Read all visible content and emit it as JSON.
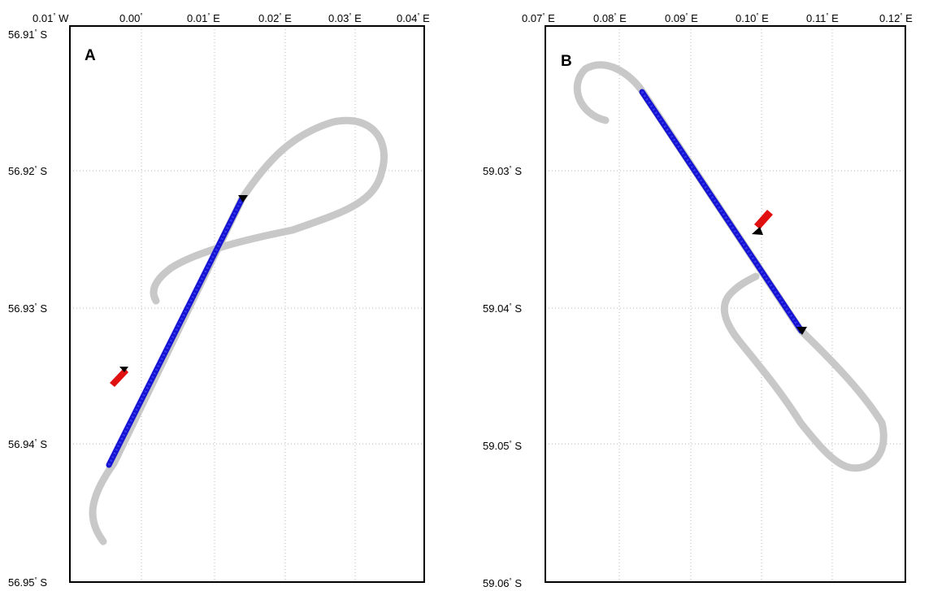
{
  "panels": [
    {
      "label": "A",
      "lon_ticks": [
        {
          "text": "0.01",
          "suffix": " W"
        },
        {
          "text": "0.00",
          "suffix": ""
        },
        {
          "text": "0.01",
          "suffix": " E"
        },
        {
          "text": "0.02",
          "suffix": " E"
        },
        {
          "text": "0.03",
          "suffix": " E"
        },
        {
          "text": "0.04",
          "suffix": " E"
        }
      ],
      "lat_ticks": [
        {
          "text": "56.91",
          "suffix": " S"
        },
        {
          "text": "56.92",
          "suffix": " S"
        },
        {
          "text": "56.93",
          "suffix": " S"
        },
        {
          "text": "56.94",
          "suffix": " S"
        },
        {
          "text": "56.95",
          "suffix": " S"
        }
      ]
    },
    {
      "label": "B",
      "lon_ticks": [
        {
          "text": "0.07",
          "suffix": " E"
        },
        {
          "text": "0.08",
          "suffix": " E"
        },
        {
          "text": "0.09",
          "suffix": " E"
        },
        {
          "text": "0.10",
          "suffix": " E"
        },
        {
          "text": "0.11",
          "suffix": " E"
        },
        {
          "text": "0.12",
          "suffix": " E"
        }
      ],
      "lat_ticks": [
        {
          "text": "59.03",
          "suffix": " S"
        },
        {
          "text": "59.04",
          "suffix": " S"
        },
        {
          "text": "59.05",
          "suffix": " S"
        },
        {
          "text": "59.06",
          "suffix": " S"
        }
      ]
    }
  ],
  "colors": {
    "ship_track": "#c8c8c8",
    "transect": "#1414d2",
    "marker": "#000000",
    "ship_icon": "#e01010"
  }
}
